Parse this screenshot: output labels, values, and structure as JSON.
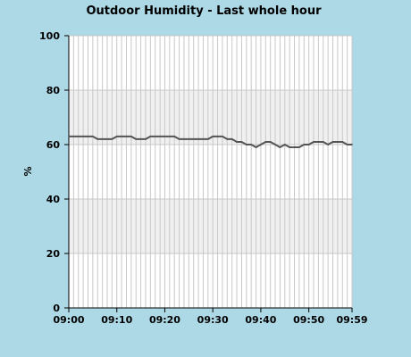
{
  "chart_data": {
    "type": "line",
    "title": "Outdoor Humidity - Last whole hour",
    "xlabel": "",
    "ylabel": "%",
    "ylim": [
      0,
      100
    ],
    "y_ticks": [
      "0",
      "20",
      "40",
      "60",
      "80",
      "100"
    ],
    "x_ticks": [
      "09:00",
      "09:10",
      "09:20",
      "09:30",
      "09:40",
      "09:50",
      "09:59"
    ],
    "x_tick_minutes": [
      0,
      10,
      20,
      30,
      40,
      50,
      59
    ],
    "grid": true,
    "legend": "none",
    "background_color": "#add8e6",
    "plot_color": "#ffffff",
    "band_color": "#f0f0f0",
    "grid_color": "#c8c8c8",
    "line_color": "#555555",
    "series": [
      {
        "x": [
          0,
          1,
          2,
          3,
          4,
          5,
          6,
          7,
          8,
          9,
          10,
          11,
          12,
          13,
          14,
          15,
          16,
          17,
          18,
          19,
          20,
          21,
          22,
          23,
          24,
          25,
          26,
          27,
          28,
          29,
          30,
          31,
          32,
          33,
          34,
          35,
          36,
          37,
          38,
          39,
          40,
          41,
          42,
          43,
          44,
          45,
          46,
          47,
          48,
          49,
          50,
          51,
          52,
          53,
          54,
          55,
          56,
          57,
          58,
          59
        ],
        "values": [
          63,
          63,
          63,
          63,
          63,
          63,
          62,
          62,
          62,
          62,
          63,
          63,
          63,
          63,
          62,
          62,
          62,
          63,
          63,
          63,
          63,
          63,
          63,
          62,
          62,
          62,
          62,
          62,
          62,
          62,
          63,
          63,
          63,
          62,
          62,
          61,
          61,
          60,
          60,
          59,
          60,
          61,
          61,
          60,
          59,
          60,
          59,
          59,
          59,
          60,
          60,
          61,
          61,
          61,
          60,
          61,
          61,
          61,
          60,
          60
        ]
      }
    ]
  }
}
